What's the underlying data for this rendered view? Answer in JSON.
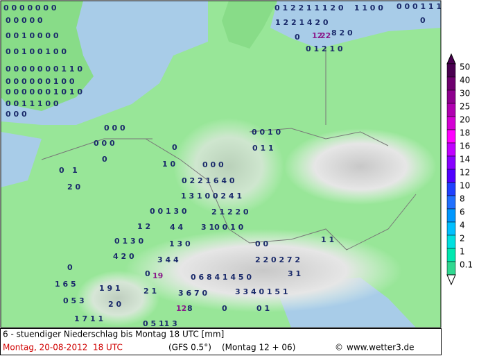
{
  "legend": {
    "levels": [
      {
        "value": 50,
        "color": "#4a0050"
      },
      {
        "value": 40,
        "color": "#6e006e"
      },
      {
        "value": 30,
        "color": "#8e008e"
      },
      {
        "value": 25,
        "color": "#b000b0"
      },
      {
        "value": 20,
        "color": "#d400d4"
      },
      {
        "value": 18,
        "color": "#ff00ff"
      },
      {
        "value": 16,
        "color": "#c000ff"
      },
      {
        "value": 14,
        "color": "#8800ff"
      },
      {
        "value": 12,
        "color": "#5000ff"
      },
      {
        "value": 10,
        "color": "#2040ff"
      },
      {
        "value": 8,
        "color": "#2070ff"
      },
      {
        "value": 6,
        "color": "#0098ff"
      },
      {
        "value": 4,
        "color": "#00c0ff"
      },
      {
        "value": 2,
        "color": "#00e0e0"
      },
      {
        "value": 1,
        "color": "#00e8b0"
      },
      {
        "value": 0.1,
        "color": "#30d890"
      }
    ]
  },
  "footer": {
    "description": "6 - stuendiger Niederschlag bis Montag 18 UTC [mm]",
    "date": "Montag, 20-08-2012  18 UTC",
    "model": "(GFS 0.5°)",
    "run": "(Montag 12 + 06)",
    "copyright": "©",
    "website": "www.wetter3.de"
  },
  "map_labels": [
    {
      "text": "0 0 0 0 0 0 0",
      "color": "#1a2a6a"
    },
    {
      "text": "0 0 0 0 0",
      "color": "#1a2a6a"
    },
    {
      "text": "0 0 1 0 0 0 0",
      "color": "#1a2a6a"
    },
    {
      "text": "0 0 1 0 0 1 0 0",
      "color": "#1a2a6a"
    },
    {
      "text": "0 0 0 0 0 0 0 1 1 0",
      "color": "#1a2a6a"
    },
    {
      "text": "0 0 0 0 0 0 1 0 0",
      "color": "#1a2a6a"
    },
    {
      "text": "0 0 0 0 0 0 1 0 1 0",
      "color": "#1a2a6a"
    },
    {
      "text": "0 0 1 1 1 0 0",
      "color": "#1a2a6a"
    },
    {
      "text": "0 0 0",
      "color": "#1a2a6a"
    },
    {
      "text": "0 1 2 2 1 1 1 2 0    1 1 0 0",
      "color": "#1a2a6a"
    },
    {
      "text": "0 0 0 1 1 1",
      "color": "#1a2a6a"
    },
    {
      "text": "0",
      "color": "#1a2a6a"
    },
    {
      "text": "1 2 2 1 4 2 0",
      "color": "#1a2a6a"
    },
    {
      "text": "0",
      "color": "#1a2a6a"
    },
    {
      "text": "12",
      "color": "#8a1a8a"
    },
    {
      "text": "22",
      "color": "#8a1a8a"
    },
    {
      "text": "8 2 0",
      "color": "#1a2a6a"
    },
    {
      "text": "0 1 2 1 0",
      "color": "#1a2a6a"
    },
    {
      "text": "0 0 0",
      "color": "#1a2a6a"
    },
    {
      "text": "0 0 0",
      "color": "#1a2a6a"
    },
    {
      "text": "0",
      "color": "#1a2a6a"
    },
    {
      "text": "0",
      "color": "#1a2a6a"
    },
    {
      "text": "1 0",
      "color": "#1a2a6a"
    },
    {
      "text": "0   1",
      "color": "#1a2a6a"
    },
    {
      "text": "2 0",
      "color": "#1a2a6a"
    },
    {
      "text": "0 0 0",
      "color": "#1a2a6a"
    },
    {
      "text": "0 2 2 1 6 4 0",
      "color": "#1a2a6a"
    },
    {
      "text": "1 3 1 0 0 2 4 1",
      "color": "#1a2a6a"
    },
    {
      "text": "0 0 1 3 0",
      "color": "#1a2a6a"
    },
    {
      "text": "2 1 2 2 0",
      "color": "#1a2a6a"
    },
    {
      "text": "1 2",
      "color": "#1a2a6a"
    },
    {
      "text": "4 4",
      "color": "#1a2a6a"
    },
    {
      "text": "3 10 0 1 0",
      "color": "#1a2a6a"
    },
    {
      "text": "0 1 3 0",
      "color": "#1a2a6a"
    },
    {
      "text": "1 3 0",
      "color": "#1a2a6a"
    },
    {
      "text": "4 2 0",
      "color": "#1a2a6a"
    },
    {
      "text": "3 4 4",
      "color": "#1a2a6a"
    },
    {
      "text": "0",
      "color": "#1a2a6a"
    },
    {
      "text": "0",
      "color": "#1a2a6a"
    },
    {
      "text": "19",
      "color": "#8a1a8a"
    },
    {
      "text": "1 6 5",
      "color": "#1a2a6a"
    },
    {
      "text": "1 9 1",
      "color": "#1a2a6a"
    },
    {
      "text": "2 1",
      "color": "#1a2a6a"
    },
    {
      "text": "0 6 8 4 1 4 5 0",
      "color": "#1a2a6a"
    },
    {
      "text": "0 5 3",
      "color": "#1a2a6a"
    },
    {
      "text": "2 0",
      "color": "#1a2a6a"
    },
    {
      "text": "3 6 7 0",
      "color": "#1a2a6a"
    },
    {
      "text": "3 3 4 0 1 5 1",
      "color": "#1a2a6a"
    },
    {
      "text": "1 7 1 1",
      "color": "#1a2a6a"
    },
    {
      "text": "12",
      "color": "#8a1a8a"
    },
    {
      "text": "8",
      "color": "#1a2a6a"
    },
    {
      "text": "0",
      "color": "#1a2a6a"
    },
    {
      "text": "0 1",
      "color": "#1a2a6a"
    },
    {
      "text": "0 5 11 3",
      "color": "#1a2a6a"
    },
    {
      "text": "0 0 1 0",
      "color": "#1a2a6a"
    },
    {
      "text": "0 1 1",
      "color": "#1a2a6a"
    },
    {
      "text": "0 0",
      "color": "#1a2a6a"
    },
    {
      "text": "1 1",
      "color": "#1a2a6a"
    },
    {
      "text": "2 2 0 2 7 2",
      "color": "#1a2a6a"
    },
    {
      "text": "3 1",
      "color": "#1a2a6a"
    }
  ]
}
